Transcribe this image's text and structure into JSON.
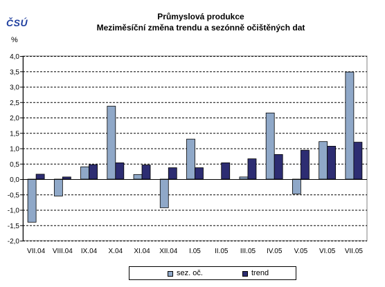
{
  "logo_text": "ČSÚ",
  "chart_data": {
    "type": "bar",
    "title": "Průmyslová produkce",
    "subtitle": "Meziměsíční změna trendu a sezónně očištěných dat",
    "ylabel": "%",
    "categories": [
      "VII.04",
      "VIII.04",
      "IX.04",
      "X.04",
      "XI.04",
      "XII.04",
      "I.05",
      "II.05",
      "III.05",
      "IV.05",
      "V.05",
      "VI.05",
      "VII.05"
    ],
    "series": [
      {
        "name": "sez. oč.",
        "color": "#8fa8c8",
        "values": [
          -1.4,
          -0.55,
          0.4,
          2.37,
          0.15,
          -0.93,
          1.3,
          0.0,
          0.07,
          2.15,
          -0.48,
          1.22,
          3.48
        ]
      },
      {
        "name": "trend",
        "color": "#2d2d72",
        "values": [
          0.16,
          0.07,
          0.47,
          0.53,
          0.46,
          0.37,
          0.37,
          0.53,
          0.66,
          0.8,
          0.94,
          1.07,
          1.2
        ]
      }
    ],
    "ylim": [
      -2.0,
      4.0
    ],
    "yticks": [
      "4,0",
      "3,5",
      "3,0",
      "2,5",
      "2,0",
      "1,5",
      "1,0",
      "0,5",
      "0,0",
      "-0,5",
      "-1,0",
      "-1,5",
      "-2,0"
    ],
    "ytick_values": [
      4.0,
      3.5,
      3.0,
      2.5,
      2.0,
      1.5,
      1.0,
      0.5,
      0.0,
      -0.5,
      -1.0,
      -1.5,
      -2.0
    ],
    "grid": true,
    "legend_position": "bottom"
  }
}
